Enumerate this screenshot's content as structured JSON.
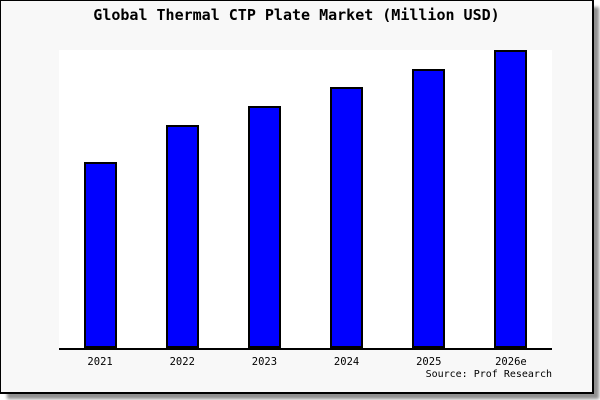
{
  "page": {
    "title": "Global Thermal CTP Plate Market (Million USD)",
    "source": "Source: Prof Research"
  },
  "colors": {
    "bar_fill": "#0000FF",
    "bar_border": "#000000",
    "axis": "#000000",
    "panel_bg": "#F8F8F8",
    "plot_bg": "#FFFFFF",
    "frame_border": "#000000",
    "shadow": "#8F8F8F"
  },
  "chart_data": {
    "type": "bar",
    "title": "Global Thermal CTP Plate Market (Million USD)",
    "categories": [
      "2021",
      "2022",
      "2023",
      "2024",
      "2025",
      "2026e"
    ],
    "values": [
      186,
      223,
      242,
      261,
      279,
      298
    ],
    "xlabel": "",
    "ylabel": "",
    "ylim": [
      0,
      298
    ],
    "grid": false,
    "legend": false,
    "y_axis_labels_visible": false,
    "bar_color": "#0000FF",
    "source": "Source: Prof Research"
  }
}
